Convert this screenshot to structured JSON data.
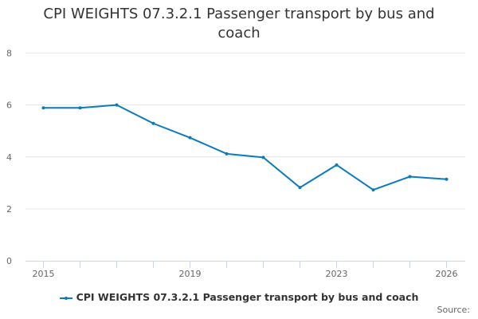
{
  "title_lines": [
    "CPI WEIGHTS 07.3.2.1 Passenger transport by bus and",
    "coach"
  ],
  "legend": {
    "label": "CPI WEIGHTS 07.3.2.1 Passenger transport by bus and coach"
  },
  "credits": {
    "source_label": "Source:"
  },
  "colors": {
    "series": "#0a7bbd",
    "grid": "#e6e6e6",
    "axis": "#ccd6eb",
    "text": "#333333",
    "tick_label": "#666666"
  },
  "chart_data": {
    "type": "line",
    "title": "CPI WEIGHTS 07.3.2.1 Passenger transport by bus and coach",
    "xlabel": "",
    "ylabel": "",
    "x": [
      2015,
      2016,
      2017,
      2018,
      2019,
      2020,
      2021,
      2022,
      2023,
      2024,
      2025,
      2026
    ],
    "x_tick_labels": [
      "2015",
      "2019",
      "2023",
      "2026"
    ],
    "y_tick_labels": [
      "0",
      "2",
      "4",
      "6",
      "8"
    ],
    "ylim": [
      0,
      8
    ],
    "grid": true,
    "legend_position": "bottom",
    "series": [
      {
        "name": "CPI WEIGHTS 07.3.2.1 Passenger transport by bus and coach",
        "values": [
          5.89,
          5.89,
          6.0,
          5.29,
          4.74,
          4.12,
          3.98,
          2.82,
          3.69,
          2.73,
          3.24,
          3.14
        ]
      }
    ]
  }
}
